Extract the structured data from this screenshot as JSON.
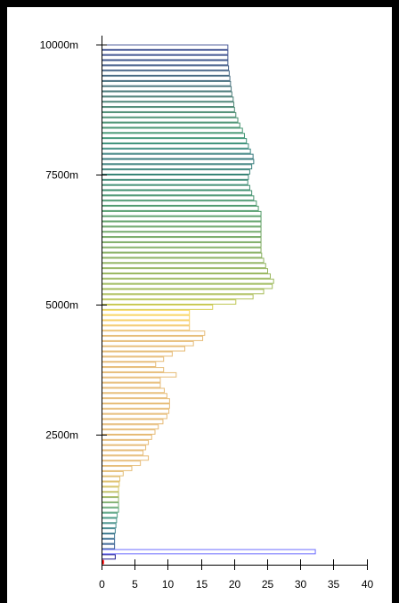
{
  "chart_data": {
    "type": "bar",
    "orientation": "horizontal",
    "y_unit": "m",
    "y_ticks": [
      "2500m",
      "5000m",
      "7500m",
      "10000m"
    ],
    "y_tick_values": [
      2500,
      5000,
      7500,
      10000
    ],
    "x_ticks": [
      "0",
      "5",
      "10",
      "15",
      "20",
      "25",
      "30",
      "35",
      "40"
    ],
    "x_tick_values": [
      0,
      5,
      10,
      15,
      20,
      25,
      30,
      35,
      40
    ],
    "xlim": [
      0,
      40
    ],
    "ylim": [
      0,
      10000
    ],
    "grid": false,
    "band_step_m": 100,
    "bands": [
      {
        "alt": 0,
        "value": 0.3,
        "color": "#ff0000"
      },
      {
        "alt": 100,
        "value": 2.0,
        "color": "#1e1a8c"
      },
      {
        "alt": 200,
        "value": 32.2,
        "color": "#6b6bff"
      },
      {
        "alt": 300,
        "value": 1.9,
        "color": "#3a5f95"
      },
      {
        "alt": 400,
        "value": 1.9,
        "color": "#3d6a95"
      },
      {
        "alt": 500,
        "value": 1.9,
        "color": "#3f7592"
      },
      {
        "alt": 600,
        "value": 2.0,
        "color": "#40808e"
      },
      {
        "alt": 700,
        "value": 2.1,
        "color": "#428a8b"
      },
      {
        "alt": 800,
        "value": 2.2,
        "color": "#469386"
      },
      {
        "alt": 900,
        "value": 2.3,
        "color": "#4a9c80"
      },
      {
        "alt": 1000,
        "value": 2.5,
        "color": "#5aa47a"
      },
      {
        "alt": 1100,
        "value": 2.5,
        "color": "#72ac73"
      },
      {
        "alt": 1200,
        "value": 2.5,
        "color": "#90b46c"
      },
      {
        "alt": 1300,
        "value": 2.5,
        "color": "#b0bc66"
      },
      {
        "alt": 1400,
        "value": 2.5,
        "color": "#cec464"
      },
      {
        "alt": 1500,
        "value": 2.6,
        "color": "#dcc168"
      },
      {
        "alt": 1600,
        "value": 2.7,
        "color": "#e0bf6e"
      },
      {
        "alt": 1700,
        "value": 3.2,
        "color": "#e3bd72"
      },
      {
        "alt": 1800,
        "value": 4.5,
        "color": "#e5bc74"
      },
      {
        "alt": 1900,
        "value": 5.8,
        "color": "#e6bb76"
      },
      {
        "alt": 2000,
        "value": 7.0,
        "color": "#e6bb76"
      },
      {
        "alt": 2100,
        "value": 6.2,
        "color": "#e6bb76"
      },
      {
        "alt": 2200,
        "value": 6.6,
        "color": "#e6bb76"
      },
      {
        "alt": 2300,
        "value": 7.0,
        "color": "#e6bb76"
      },
      {
        "alt": 2400,
        "value": 7.5,
        "color": "#e6bb76"
      },
      {
        "alt": 2500,
        "value": 8.0,
        "color": "#e6bb76"
      },
      {
        "alt": 2600,
        "value": 8.5,
        "color": "#e6bb76"
      },
      {
        "alt": 2700,
        "value": 9.2,
        "color": "#e6bb76"
      },
      {
        "alt": 2800,
        "value": 9.8,
        "color": "#e6bb76"
      },
      {
        "alt": 2900,
        "value": 10.1,
        "color": "#e6bb76"
      },
      {
        "alt": 3000,
        "value": 10.2,
        "color": "#e6bb76"
      },
      {
        "alt": 3100,
        "value": 10.2,
        "color": "#e6bb76"
      },
      {
        "alt": 3200,
        "value": 9.8,
        "color": "#e6bb76"
      },
      {
        "alt": 3300,
        "value": 9.4,
        "color": "#e6bb76"
      },
      {
        "alt": 3400,
        "value": 8.8,
        "color": "#e6bb76"
      },
      {
        "alt": 3500,
        "value": 8.8,
        "color": "#e6bb76"
      },
      {
        "alt": 3600,
        "value": 11.2,
        "color": "#e6bb76"
      },
      {
        "alt": 3700,
        "value": 9.3,
        "color": "#e6bb76"
      },
      {
        "alt": 3800,
        "value": 8.1,
        "color": "#e6bb76"
      },
      {
        "alt": 3900,
        "value": 9.3,
        "color": "#e6bb76"
      },
      {
        "alt": 4000,
        "value": 10.6,
        "color": "#e6bb76"
      },
      {
        "alt": 4100,
        "value": 12.5,
        "color": "#e6bb76"
      },
      {
        "alt": 4200,
        "value": 13.8,
        "color": "#e6bb76"
      },
      {
        "alt": 4300,
        "value": 15.2,
        "color": "#e6bb76"
      },
      {
        "alt": 4400,
        "value": 15.5,
        "color": "#e6bb76"
      },
      {
        "alt": 4500,
        "value": 13.2,
        "color": "#f0c672"
      },
      {
        "alt": 4600,
        "value": 13.2,
        "color": "#f6cd6a"
      },
      {
        "alt": 4700,
        "value": 13.2,
        "color": "#f9d363"
      },
      {
        "alt": 4800,
        "value": 13.2,
        "color": "#f9d55c"
      },
      {
        "alt": 4900,
        "value": 16.7,
        "color": "#d8ce58"
      },
      {
        "alt": 5000,
        "value": 20.2,
        "color": "#bfc756"
      },
      {
        "alt": 5100,
        "value": 22.8,
        "color": "#b2c05a"
      },
      {
        "alt": 5200,
        "value": 24.4,
        "color": "#a8bd5c"
      },
      {
        "alt": 5300,
        "value": 25.7,
        "color": "#a1bb5c"
      },
      {
        "alt": 5400,
        "value": 25.9,
        "color": "#9cb95d"
      },
      {
        "alt": 5500,
        "value": 25.4,
        "color": "#9ab75e"
      },
      {
        "alt": 5600,
        "value": 25.0,
        "color": "#96b55e"
      },
      {
        "alt": 5700,
        "value": 24.7,
        "color": "#92b35f"
      },
      {
        "alt": 5800,
        "value": 24.4,
        "color": "#8db15f"
      },
      {
        "alt": 5900,
        "value": 24.1,
        "color": "#88af60"
      },
      {
        "alt": 6000,
        "value": 24.0,
        "color": "#83ad61"
      },
      {
        "alt": 6100,
        "value": 24.0,
        "color": "#7eab62"
      },
      {
        "alt": 6200,
        "value": 24.0,
        "color": "#78a963"
      },
      {
        "alt": 6300,
        "value": 24.0,
        "color": "#72a764"
      },
      {
        "alt": 6400,
        "value": 24.0,
        "color": "#6ba565"
      },
      {
        "alt": 6500,
        "value": 24.0,
        "color": "#63a266"
      },
      {
        "alt": 6600,
        "value": 24.0,
        "color": "#5b9f68"
      },
      {
        "alt": 6700,
        "value": 24.0,
        "color": "#549c6a"
      },
      {
        "alt": 6800,
        "value": 23.6,
        "color": "#4e9a6b"
      },
      {
        "alt": 6900,
        "value": 23.3,
        "color": "#49976c"
      },
      {
        "alt": 7000,
        "value": 22.9,
        "color": "#45946d"
      },
      {
        "alt": 7100,
        "value": 22.6,
        "color": "#41916f"
      },
      {
        "alt": 7200,
        "value": 22.3,
        "color": "#3e8e71"
      },
      {
        "alt": 7300,
        "value": 22.0,
        "color": "#3b8a73"
      },
      {
        "alt": 7400,
        "value": 22.1,
        "color": "#398775"
      },
      {
        "alt": 7500,
        "value": 22.3,
        "color": "#388378"
      },
      {
        "alt": 7600,
        "value": 22.6,
        "color": "#38807a"
      },
      {
        "alt": 7700,
        "value": 22.9,
        "color": "#387c7c"
      },
      {
        "alt": 7800,
        "value": 22.8,
        "color": "#38797e"
      },
      {
        "alt": 7900,
        "value": 22.4,
        "color": "#398580"
      },
      {
        "alt": 8000,
        "value": 22.1,
        "color": "#3b8e7c"
      },
      {
        "alt": 8100,
        "value": 21.8,
        "color": "#3e9478"
      },
      {
        "alt": 8200,
        "value": 21.5,
        "color": "#419674"
      },
      {
        "alt": 8300,
        "value": 21.2,
        "color": "#439571"
      },
      {
        "alt": 8400,
        "value": 20.8,
        "color": "#45926f"
      },
      {
        "alt": 8500,
        "value": 20.5,
        "color": "#468f6e"
      },
      {
        "alt": 8600,
        "value": 20.2,
        "color": "#478b6e"
      },
      {
        "alt": 8700,
        "value": 20.0,
        "color": "#47876f"
      },
      {
        "alt": 8800,
        "value": 19.9,
        "color": "#478270"
      },
      {
        "alt": 8900,
        "value": 19.8,
        "color": "#467d72"
      },
      {
        "alt": 9000,
        "value": 19.6,
        "color": "#467874"
      },
      {
        "alt": 9100,
        "value": 19.5,
        "color": "#457377"
      },
      {
        "alt": 9200,
        "value": 19.4,
        "color": "#446e7a"
      },
      {
        "alt": 9300,
        "value": 19.3,
        "color": "#43697e"
      },
      {
        "alt": 9400,
        "value": 19.2,
        "color": "#426482"
      },
      {
        "alt": 9500,
        "value": 19.1,
        "color": "#415e86"
      },
      {
        "alt": 9600,
        "value": 19.0,
        "color": "#40598a"
      },
      {
        "alt": 9700,
        "value": 19.0,
        "color": "#3f548d"
      },
      {
        "alt": 9800,
        "value": 19.0,
        "color": "#3e4f90"
      },
      {
        "alt": 9900,
        "value": 19.0,
        "color": "#4a5a98"
      }
    ]
  }
}
